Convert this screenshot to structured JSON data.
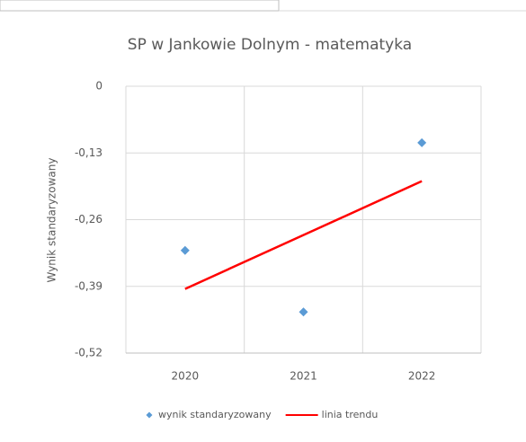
{
  "chart_data": {
    "type": "scatter",
    "title": "SP w Jankowie Dolnym - matematyka",
    "y_label": "Wynik standaryzowany",
    "categories": [
      "2020",
      "2021",
      "2022"
    ],
    "series": [
      {
        "name": "wynik standaryzowany",
        "type": "scatter",
        "color": "#5b9bd5",
        "values": [
          -0.32,
          -0.44,
          -0.11
        ]
      },
      {
        "name": "linia trendu",
        "type": "line",
        "color": "#ff0000",
        "values": [
          -0.395,
          -0.29,
          -0.185
        ]
      }
    ],
    "ylim": [
      -0.52,
      0
    ],
    "yticks": [
      0,
      {
        "value": -0.13,
        "label": "-0,13"
      },
      {
        "value": -0.26,
        "label": "-0,26"
      },
      {
        "value": -0.39,
        "label": "-0,39"
      },
      {
        "value": -0.52,
        "label": "-0,52"
      }
    ],
    "grid": true,
    "legend": "bottom"
  }
}
